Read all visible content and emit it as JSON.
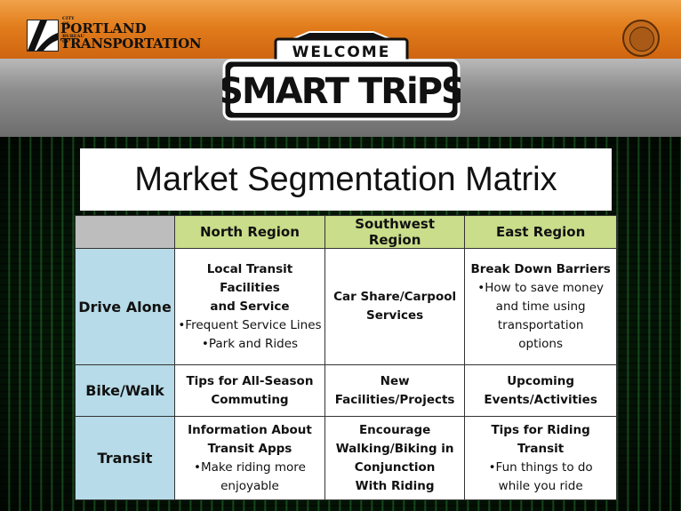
{
  "header": {
    "logo": {
      "city_of": "CITY OF",
      "portland": "PORTLAND",
      "bureau_of": "BUREAU OF",
      "transportation": "TRANSPORTATION"
    },
    "banner_top": "WELCOME",
    "banner_main": "SMART TRiPS"
  },
  "title": "Market Segmentation Matrix",
  "table": {
    "columns": [
      "North Region",
      "Southwest Region",
      "East Region"
    ],
    "rows": [
      {
        "label": "Drive Alone",
        "cells": [
          [
            "Local Transit Facilities",
            "and Service",
            "•Frequent Service Lines",
            "•Park and Rides"
          ],
          [
            "Car Share/Carpool",
            "Services"
          ],
          [
            "Break Down Barriers",
            "•How to save money",
            "and time using",
            "transportation",
            "options"
          ]
        ]
      },
      {
        "label": "Bike/Walk",
        "cells": [
          [
            "Tips for All-Season",
            "Commuting"
          ],
          [
            "New",
            "Facilities/Projects"
          ],
          [
            "Upcoming",
            "Events/Activities"
          ]
        ]
      },
      {
        "label": "Transit",
        "cells": [
          [
            "Information About",
            "Transit Apps",
            "•Make riding more",
            "enjoyable"
          ],
          [
            "Encourage",
            "Walking/Biking in",
            "Conjunction",
            "With Riding"
          ],
          [
            "Tips for Riding Transit",
            "•Fun things to do",
            "while you ride"
          ]
        ]
      }
    ]
  },
  "colors": {
    "header_orange": "#e27d1c",
    "column_header": "#c9dd8a",
    "row_header": "#b7dbe8",
    "matrix_green": "#6ef07a"
  }
}
